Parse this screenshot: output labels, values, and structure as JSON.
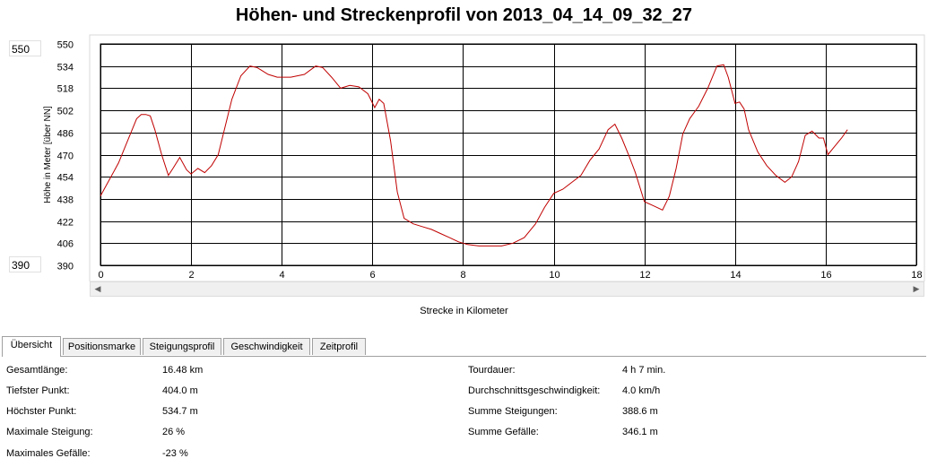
{
  "title": "Höhen- und Streckenprofil von 2013_04_14_09_32_27",
  "y_range_boxes": {
    "max": "550",
    "min": "390"
  },
  "axis_labels": {
    "y": "Höhe in Meter [über NN]",
    "x": "Strecke in Kilometer"
  },
  "tabs": [
    {
      "label": "Übersicht",
      "active": true
    },
    {
      "label": "Positionsmarke",
      "active": false
    },
    {
      "label": "Steigungsprofil",
      "active": false
    },
    {
      "label": "Geschwindigkeit",
      "active": false
    },
    {
      "label": "Zeitprofil",
      "active": false
    }
  ],
  "stats_left": [
    {
      "label": "Gesamtlänge:",
      "value": "16.48 km"
    },
    {
      "label": "Tiefster Punkt:",
      "value": "404.0 m"
    },
    {
      "label": "Höchster Punkt:",
      "value": "534.7 m"
    },
    {
      "label": "Maximale Steigung:",
      "value": "26 %"
    },
    {
      "label": "Maximales Gefälle:",
      "value": "-23 %"
    }
  ],
  "stats_right": [
    {
      "label": "Tourdauer:",
      "value": "4 h 7 min."
    },
    {
      "label": "Durchschnittsgeschwindigkeit:",
      "value": "4.0 km/h"
    },
    {
      "label": "Summe Steigungen:",
      "value": "388.6 m"
    },
    {
      "label": "Summe Gefälle:",
      "value": "346.1 m"
    }
  ],
  "colors": {
    "line": "#c00000",
    "grid": "#000000"
  },
  "chart_data": {
    "type": "line",
    "xlabel": "Strecke in Kilometer",
    "ylabel": "Höhe in Meter [über NN]",
    "xlim": [
      0,
      18
    ],
    "ylim": [
      390,
      550
    ],
    "xticks": [
      0,
      2,
      4,
      6,
      8,
      10,
      12,
      14,
      16,
      18
    ],
    "yticks": [
      390,
      406,
      422,
      438,
      454,
      470,
      486,
      502,
      518,
      534,
      550
    ],
    "grid": true,
    "x": [
      0,
      0.2,
      0.4,
      0.6,
      0.8,
      0.9,
      1.0,
      1.1,
      1.2,
      1.35,
      1.5,
      1.6,
      1.75,
      1.9,
      2.0,
      2.15,
      2.3,
      2.45,
      2.6,
      2.75,
      2.9,
      3.1,
      3.3,
      3.45,
      3.55,
      3.7,
      3.9,
      4.2,
      4.5,
      4.75,
      4.9,
      5.1,
      5.3,
      5.5,
      5.7,
      5.9,
      6.05,
      6.15,
      6.25,
      6.4,
      6.55,
      6.7,
      6.9,
      7.1,
      7.3,
      7.5,
      7.7,
      7.9,
      8.1,
      8.35,
      8.6,
      8.85,
      9.1,
      9.35,
      9.6,
      9.8,
      10.0,
      10.2,
      10.4,
      10.6,
      10.8,
      11.0,
      11.2,
      11.35,
      11.5,
      11.65,
      11.8,
      12.0,
      12.2,
      12.4,
      12.55,
      12.7,
      12.85,
      13.0,
      13.2,
      13.4,
      13.6,
      13.75,
      13.85,
      14.0,
      14.1,
      14.2,
      14.3,
      14.5,
      14.7,
      14.9,
      15.1,
      15.25,
      15.4,
      15.55,
      15.7,
      15.85,
      15.95,
      16.05,
      16.2,
      16.35,
      16.48
    ],
    "y": [
      440,
      452,
      464,
      480,
      496,
      499,
      499,
      498,
      488,
      470,
      455,
      460,
      468,
      459,
      456,
      460,
      457,
      462,
      470,
      490,
      510,
      527,
      534,
      533,
      531,
      528,
      526,
      526,
      528,
      534,
      533,
      526,
      518,
      520,
      519,
      514,
      504,
      510,
      507,
      480,
      443,
      424,
      420,
      418,
      416,
      413,
      410,
      407,
      405,
      404,
      404,
      404,
      406,
      410,
      420,
      432,
      442,
      445,
      450,
      455,
      466,
      474,
      488,
      492,
      482,
      470,
      457,
      436,
      433,
      430,
      440,
      460,
      485,
      496,
      505,
      518,
      534,
      535,
      526,
      507,
      508,
      503,
      488,
      472,
      462,
      455,
      450,
      454,
      465,
      484,
      487,
      482,
      482,
      470,
      476,
      482,
      488
    ]
  }
}
